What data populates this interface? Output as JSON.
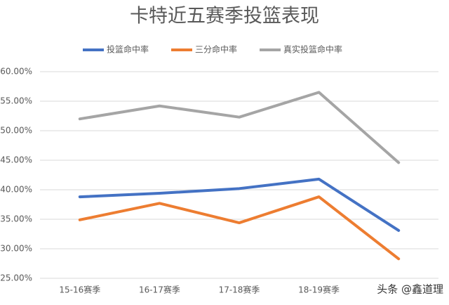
{
  "chart_data": {
    "type": "line",
    "title": "卡特近五赛季投篮表现",
    "categories": [
      "15-16赛季",
      "16-17赛季",
      "17-18赛季",
      "18-19赛季",
      null
    ],
    "series": [
      {
        "name": "投篮命中率",
        "color": "#4472c4",
        "values": [
          38.8,
          39.4,
          40.2,
          41.8,
          33.1
        ]
      },
      {
        "name": "三分命中率",
        "color": "#ed7d31",
        "values": [
          34.9,
          37.7,
          34.4,
          38.8,
          28.3
        ]
      },
      {
        "name": "真实投篮命中率",
        "color": "#a5a5a5",
        "values": [
          52.0,
          54.2,
          52.3,
          56.5,
          44.6
        ]
      }
    ],
    "ylim": [
      25,
      60
    ],
    "yticks": [
      {
        "value": 25,
        "label": "25.00%"
      },
      {
        "value": 30,
        "label": "30.00%"
      },
      {
        "value": 35,
        "label": "35.00%"
      },
      {
        "value": 40,
        "label": "40.00%"
      },
      {
        "value": 45,
        "label": "45.00%"
      },
      {
        "value": 50,
        "label": "50.00%"
      },
      {
        "value": 55,
        "label": "55.00%"
      },
      {
        "value": 60,
        "label": "60.00%"
      }
    ],
    "grid": true,
    "legend": "top",
    "watermark": "头条 @鑫道理"
  }
}
